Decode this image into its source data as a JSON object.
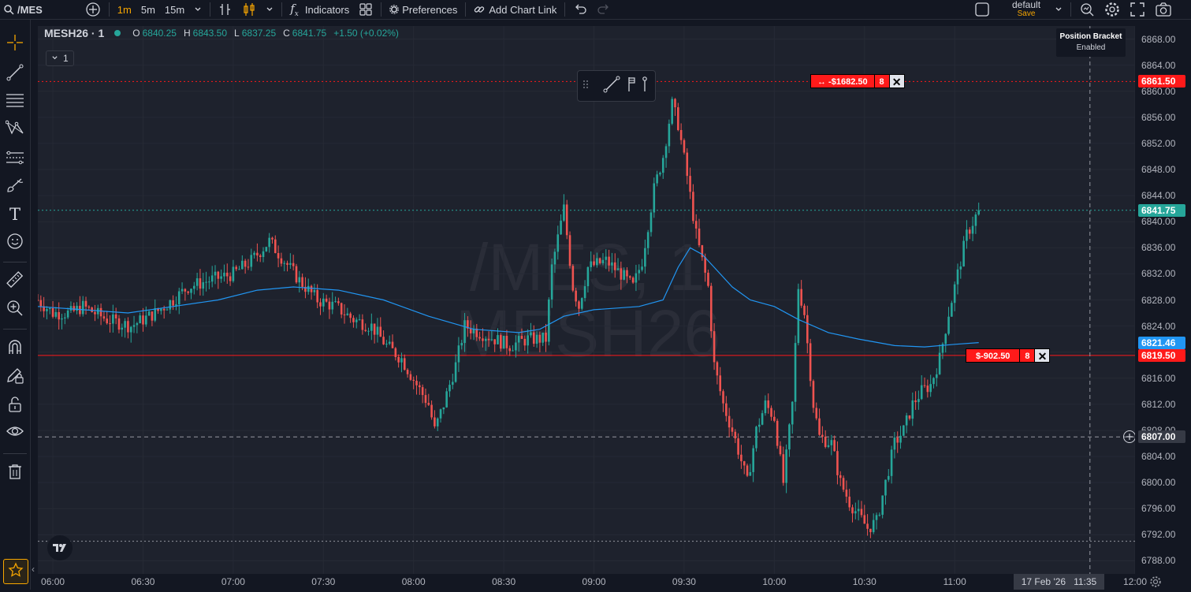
{
  "app": {
    "symbol": "/MES",
    "workspace": "default",
    "workspace_sub": "Save"
  },
  "toolbar": {
    "intervals": [
      "1m",
      "5m",
      "15m"
    ],
    "indicators_label": "Indicators",
    "preferences_label": "Preferences",
    "chart_link_label": "Add Chart Link"
  },
  "legend": {
    "title": "MESH26 · 1",
    "o_key": "O",
    "o_val": "6840.25",
    "h_key": "H",
    "h_val": "6843.50",
    "l_key": "L",
    "l_val": "6837.25",
    "c_key": "C",
    "c_val": "6841.75",
    "change": "+1.50 (+0.02%)",
    "pane_count": "1"
  },
  "watermark": {
    "line1": "/MES, 1",
    "line2": "MESH26"
  },
  "bracket_box": {
    "title": "Position Bracket",
    "status": "Enabled"
  },
  "orders": [
    {
      "pl": "↔ -$1682.50",
      "qty": "8",
      "price": 6861.5
    },
    {
      "pl": "$-902.50",
      "qty": "8",
      "price": 6819.5
    }
  ],
  "price_tags": [
    {
      "label": "6861.50",
      "price": 6861.5,
      "color": "#ff1a1a"
    },
    {
      "label": "6841.75",
      "price": 6841.75,
      "color": "#26a69a"
    },
    {
      "label": "6821.46",
      "price": 6821.46,
      "color": "#2196f3"
    },
    {
      "label": "6819.50",
      "price": 6819.5,
      "color": "#ff1a1a"
    },
    {
      "label": "6807.00",
      "price": 6807.0,
      "color": "#363a45"
    }
  ],
  "time_axis": {
    "date_label": "17 Feb '26",
    "time_label": "11:35"
  },
  "chart_data": {
    "type": "candlestick",
    "symbol": "MESH26",
    "interval": "1m",
    "ylim": [
      6786,
      6870
    ],
    "y_ticks": [
      6788,
      6792,
      6796,
      6800,
      6804,
      6808,
      6812,
      6816,
      6820,
      6824,
      6828,
      6832,
      6836,
      6840,
      6844,
      6848,
      6852,
      6856,
      6860,
      6864,
      6868
    ],
    "x_ticks": [
      "06:00",
      "06:30",
      "07:00",
      "07:30",
      "08:00",
      "08:30",
      "09:00",
      "09:30",
      "10:00",
      "10:30",
      "11:00",
      "12:00"
    ],
    "x_range_minutes": [
      355,
      720
    ],
    "last_bar_minute": 668,
    "close_path": [
      [
        355,
        6828
      ],
      [
        360,
        6826
      ],
      [
        366,
        6826
      ],
      [
        370,
        6827
      ],
      [
        378,
        6825
      ],
      [
        386,
        6824
      ],
      [
        394,
        6826
      ],
      [
        400,
        6828
      ],
      [
        405,
        6830
      ],
      [
        412,
        6831
      ],
      [
        420,
        6832
      ],
      [
        426,
        6834
      ],
      [
        432,
        6837
      ],
      [
        437,
        6834
      ],
      [
        442,
        6831
      ],
      [
        448,
        6828
      ],
      [
        454,
        6827
      ],
      [
        460,
        6825
      ],
      [
        466,
        6824
      ],
      [
        471,
        6821
      ],
      [
        476,
        6819
      ],
      [
        481,
        6815
      ],
      [
        485,
        6812
      ],
      [
        487,
        6808
      ],
      [
        490,
        6812
      ],
      [
        494,
        6818
      ],
      [
        497,
        6824
      ],
      [
        502,
        6823
      ],
      [
        507,
        6822
      ],
      [
        512,
        6821
      ],
      [
        518,
        6822
      ],
      [
        524,
        6822
      ],
      [
        526,
        6833
      ],
      [
        530,
        6842
      ],
      [
        533,
        6830
      ],
      [
        535,
        6827
      ],
      [
        538,
        6833
      ],
      [
        544,
        6834
      ],
      [
        549,
        6832
      ],
      [
        553,
        6830
      ],
      [
        556,
        6834
      ],
      [
        560,
        6845
      ],
      [
        563,
        6850
      ],
      [
        566,
        6858
      ],
      [
        568,
        6855
      ],
      [
        571,
        6847
      ],
      [
        574,
        6838
      ],
      [
        576,
        6834
      ],
      [
        578,
        6830
      ],
      [
        580,
        6818
      ],
      [
        583,
        6812
      ],
      [
        586,
        6808
      ],
      [
        588,
        6805
      ],
      [
        591,
        6800
      ],
      [
        594,
        6808
      ],
      [
        597,
        6812
      ],
      [
        600,
        6810
      ],
      [
        603,
        6800
      ],
      [
        606,
        6812
      ],
      [
        608,
        6830
      ],
      [
        610,
        6826
      ],
      [
        613,
        6812
      ],
      [
        615,
        6807
      ],
      [
        619,
        6806
      ],
      [
        622,
        6800
      ],
      [
        625,
        6797
      ],
      [
        628,
        6795
      ],
      [
        631,
        6793
      ],
      [
        634,
        6794
      ],
      [
        637,
        6800
      ],
      [
        640,
        6806
      ],
      [
        643,
        6808
      ],
      [
        646,
        6812
      ],
      [
        649,
        6814
      ],
      [
        652,
        6815
      ],
      [
        655,
        6819
      ],
      [
        658,
        6826
      ],
      [
        661,
        6832
      ],
      [
        664,
        6838
      ],
      [
        668,
        6841.75
      ]
    ],
    "ma_path": [
      [
        355,
        6827
      ],
      [
        370,
        6826.5
      ],
      [
        385,
        6826
      ],
      [
        400,
        6827
      ],
      [
        415,
        6828
      ],
      [
        428,
        6829.5
      ],
      [
        440,
        6830
      ],
      [
        455,
        6829.5
      ],
      [
        470,
        6828
      ],
      [
        485,
        6825.5
      ],
      [
        500,
        6823.5
      ],
      [
        515,
        6823
      ],
      [
        522,
        6823.5
      ],
      [
        530,
        6825.5
      ],
      [
        540,
        6826.5
      ],
      [
        555,
        6827
      ],
      [
        563,
        6828
      ],
      [
        568,
        6833
      ],
      [
        572,
        6836
      ],
      [
        576,
        6835
      ],
      [
        580,
        6833
      ],
      [
        586,
        6830
      ],
      [
        592,
        6828
      ],
      [
        600,
        6827
      ],
      [
        608,
        6825
      ],
      [
        618,
        6823
      ],
      [
        628,
        6822
      ],
      [
        640,
        6821
      ],
      [
        650,
        6820.8
      ],
      [
        660,
        6821.2
      ],
      [
        668,
        6821.46
      ]
    ],
    "horizontal_lines": [
      {
        "price": 6861.5,
        "style": "dotted",
        "color": "#ff1a1a"
      },
      {
        "price": 6841.75,
        "style": "dotted",
        "color": "#26a69a"
      },
      {
        "price": 6819.5,
        "style": "solid",
        "color": "#ff1a1a"
      },
      {
        "price": 6807.0,
        "style": "dashed",
        "color": "#9598a1"
      },
      {
        "price": 6791.0,
        "style": "dotted",
        "color": "#9598a1"
      }
    ],
    "crosshair_minute": 705
  }
}
